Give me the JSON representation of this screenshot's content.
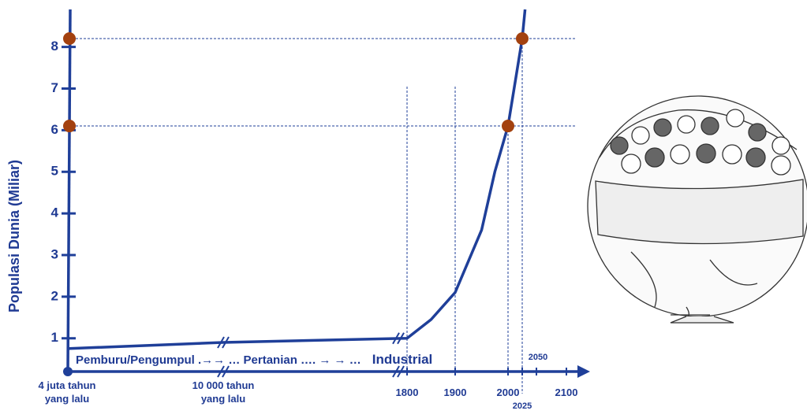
{
  "chart_data": {
    "type": "line",
    "y_label": "Populasi Dunia  (Miliar)",
    "ylim": [
      0.2,
      8.9
    ],
    "yticks": [
      1,
      2,
      3,
      4,
      5,
      6,
      7,
      8
    ],
    "xticks": [
      {
        "value": -4000000,
        "label": "4 juta tahun yang lalu"
      },
      {
        "value": -10000,
        "label": "10 000 tahun yang lalu"
      },
      1800,
      1900,
      2000,
      2025,
      2050,
      2100
    ],
    "eras": [
      "Pemburu/Pengumpul .→→ …",
      "Pertanian …. → → …",
      "Industrial"
    ],
    "series": [
      {
        "color": "#1f3f99",
        "x": [
          -4000000,
          -10000,
          1800,
          1850,
          1900,
          1950,
          1975,
          2000,
          2025,
          2030
        ],
        "values": [
          0.75,
          0.9,
          1.0,
          1.45,
          2.1,
          3.6,
          5.0,
          6.1,
          8.2,
          8.9
        ]
      }
    ],
    "highlights": [
      {
        "x": 2000,
        "y": 6.1
      },
      {
        "x": 2025,
        "y": 8.2
      }
    ],
    "highlight_color": "#a3410f"
  }
}
